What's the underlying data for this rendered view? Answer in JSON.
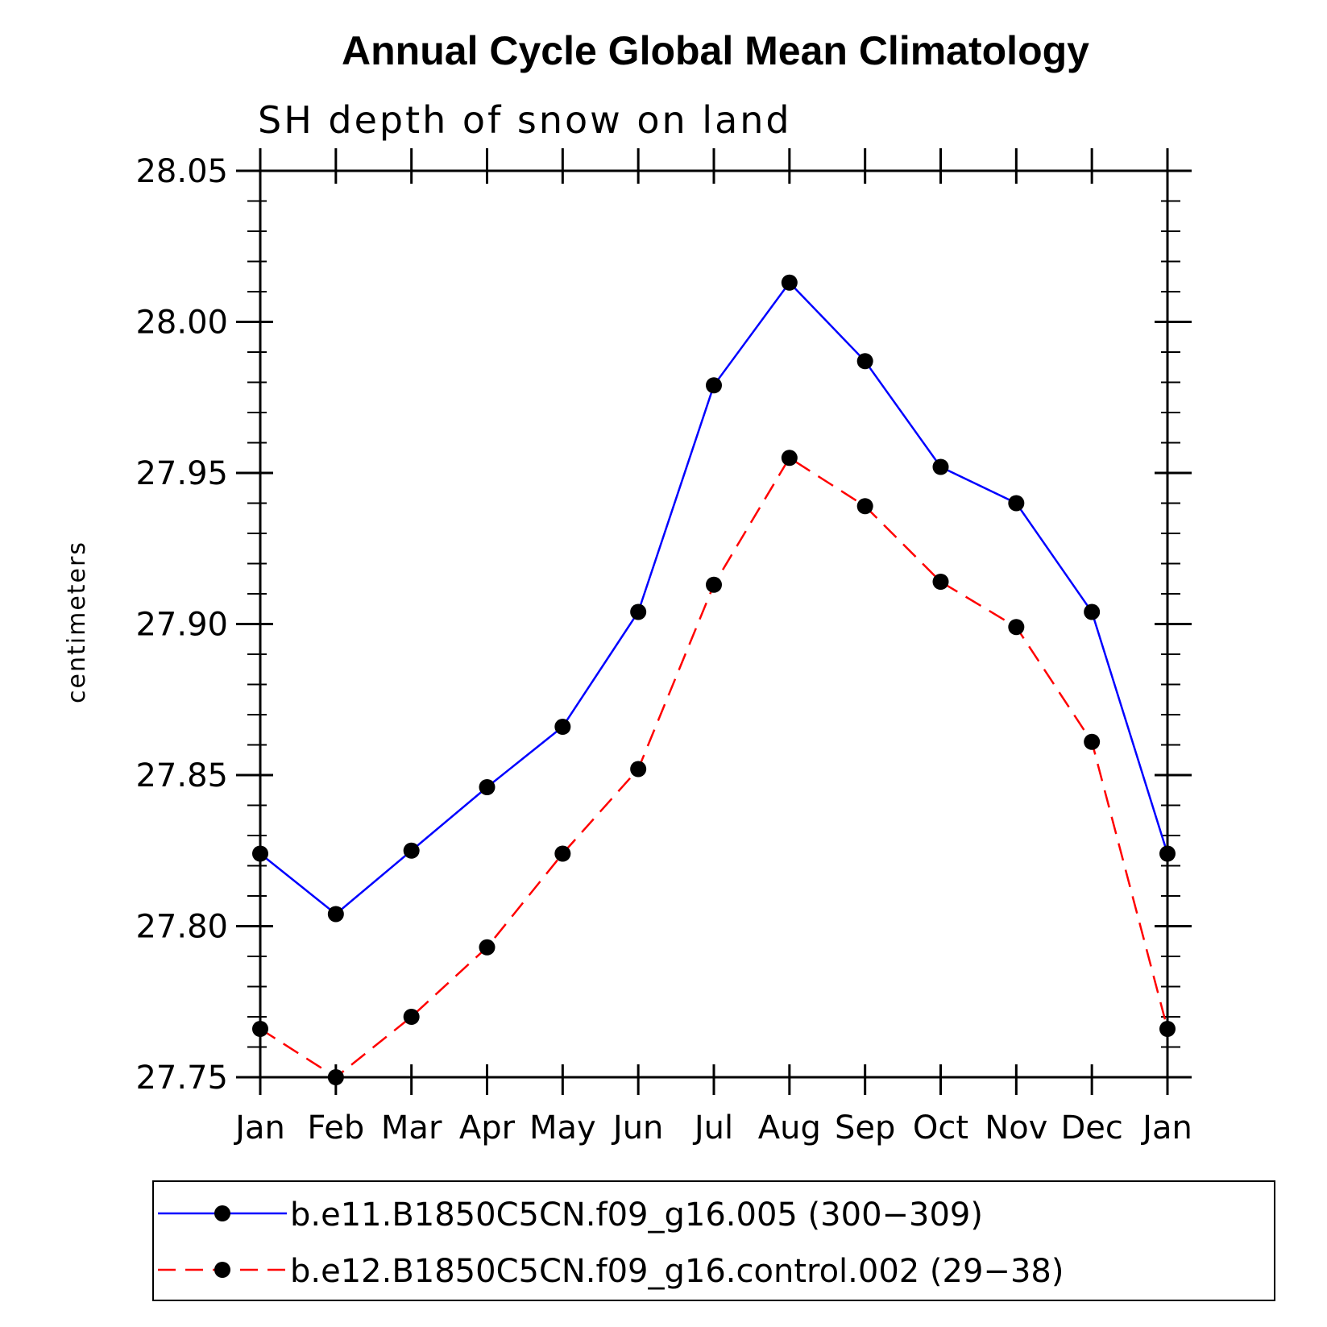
{
  "chart_data": {
    "type": "line",
    "title": "Annual Cycle Global Mean Climatology",
    "subtitle": "SH depth of snow on land",
    "xlabel": "",
    "ylabel": "centimeters",
    "categories": [
      "Jan",
      "Feb",
      "Mar",
      "Apr",
      "May",
      "Jun",
      "Jul",
      "Aug",
      "Sep",
      "Oct",
      "Nov",
      "Dec",
      "Jan"
    ],
    "ylim": [
      27.75,
      28.05
    ],
    "yticks": [
      "27.75",
      "27.80",
      "27.85",
      "27.90",
      "27.95",
      "28.00",
      "28.05"
    ],
    "series": [
      {
        "name": "b.e11.B1850C5CN.f09_g16.005 (300−309)",
        "color": "#0000ff",
        "dash": "solid",
        "marker": "dot",
        "values": [
          27.824,
          27.804,
          27.825,
          27.846,
          27.866,
          27.904,
          27.979,
          28.013,
          27.987,
          27.952,
          27.94,
          27.904,
          27.824
        ]
      },
      {
        "name": "b.e12.B1850C5CN.f09_g16.control.002 (29−38)",
        "color": "#ff0000",
        "dash": "dashed",
        "marker": "dot",
        "values": [
          27.766,
          27.75,
          27.77,
          27.793,
          27.824,
          27.852,
          27.913,
          27.955,
          27.939,
          27.914,
          27.899,
          27.861,
          27.766
        ]
      }
    ],
    "grid": false,
    "legend_position": "bottom"
  }
}
